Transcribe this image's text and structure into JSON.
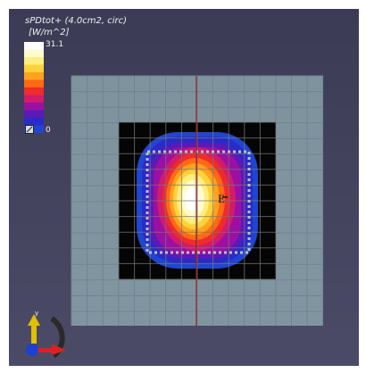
{
  "legend": {
    "title": "sPDtot+ (4.0cm2, circ)",
    "unit": "[W/m^2]",
    "max_label": "31.1",
    "min_label": "0",
    "colors": [
      "#ffffff",
      "#fffbd0",
      "#ffee80",
      "#ffd23c",
      "#ffa21e",
      "#ff6a14",
      "#ef2b2b",
      "#d11b6b",
      "#9b10a3",
      "#5a1ab8",
      "#2a2ac8",
      "#1f46d2"
    ]
  },
  "scene": {
    "marker_label": "E",
    "colors": {
      "background": "#42425d",
      "plane": "#8ea6ae",
      "grid_line": "#6d8590",
      "center_line": "#9b1b1b",
      "black_box": "#050505",
      "dotted_outline": "#bfbfbf"
    }
  },
  "axes": {
    "y_label": "y",
    "colors": {
      "y_axis": "#e0c000",
      "x_axis": "#e02020",
      "z_axis": "#1f3fd0"
    }
  }
}
